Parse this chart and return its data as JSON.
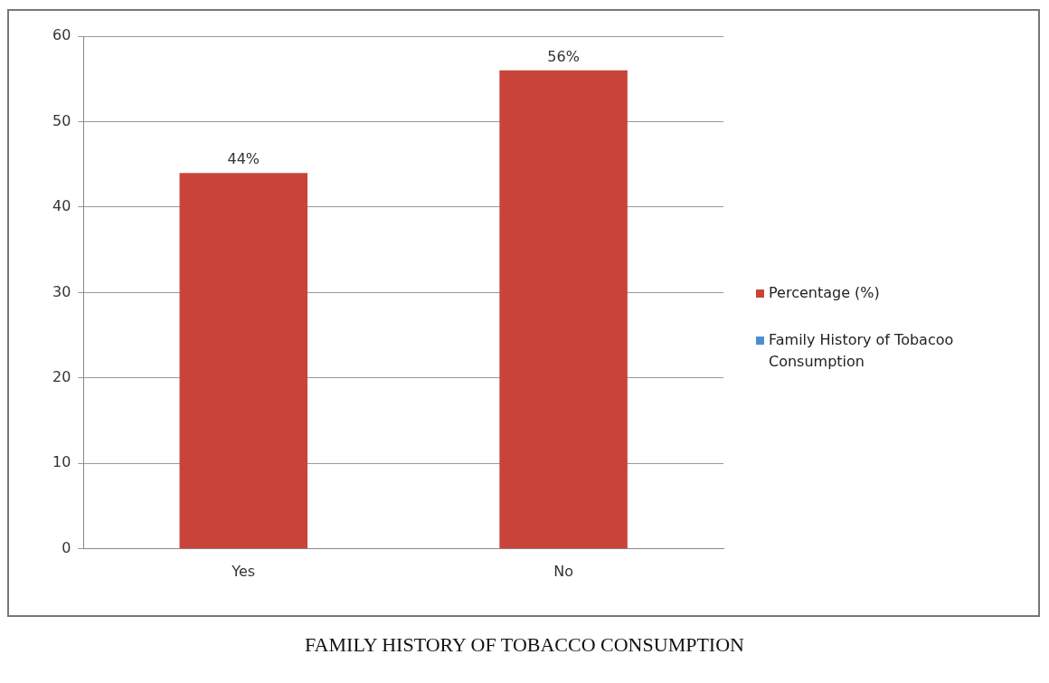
{
  "chart_data": {
    "type": "bar",
    "title": "FAMILY HISTORY OF TOBACCO CONSUMPTION",
    "categories": [
      "Yes",
      "No"
    ],
    "series": [
      {
        "name": "Percentage (%)",
        "color": "#c8443a",
        "values": [
          44,
          56
        ],
        "value_labels": [
          "44%",
          "56%"
        ]
      },
      {
        "name": "Family History of Tobacoo Consumption",
        "color": "#4a8fcf",
        "values": [
          null,
          null
        ]
      }
    ],
    "ylim": [
      0,
      60
    ],
    "yticks": [
      0,
      10,
      20,
      30,
      40,
      50,
      60
    ],
    "grid": "y",
    "legend": "right"
  }
}
